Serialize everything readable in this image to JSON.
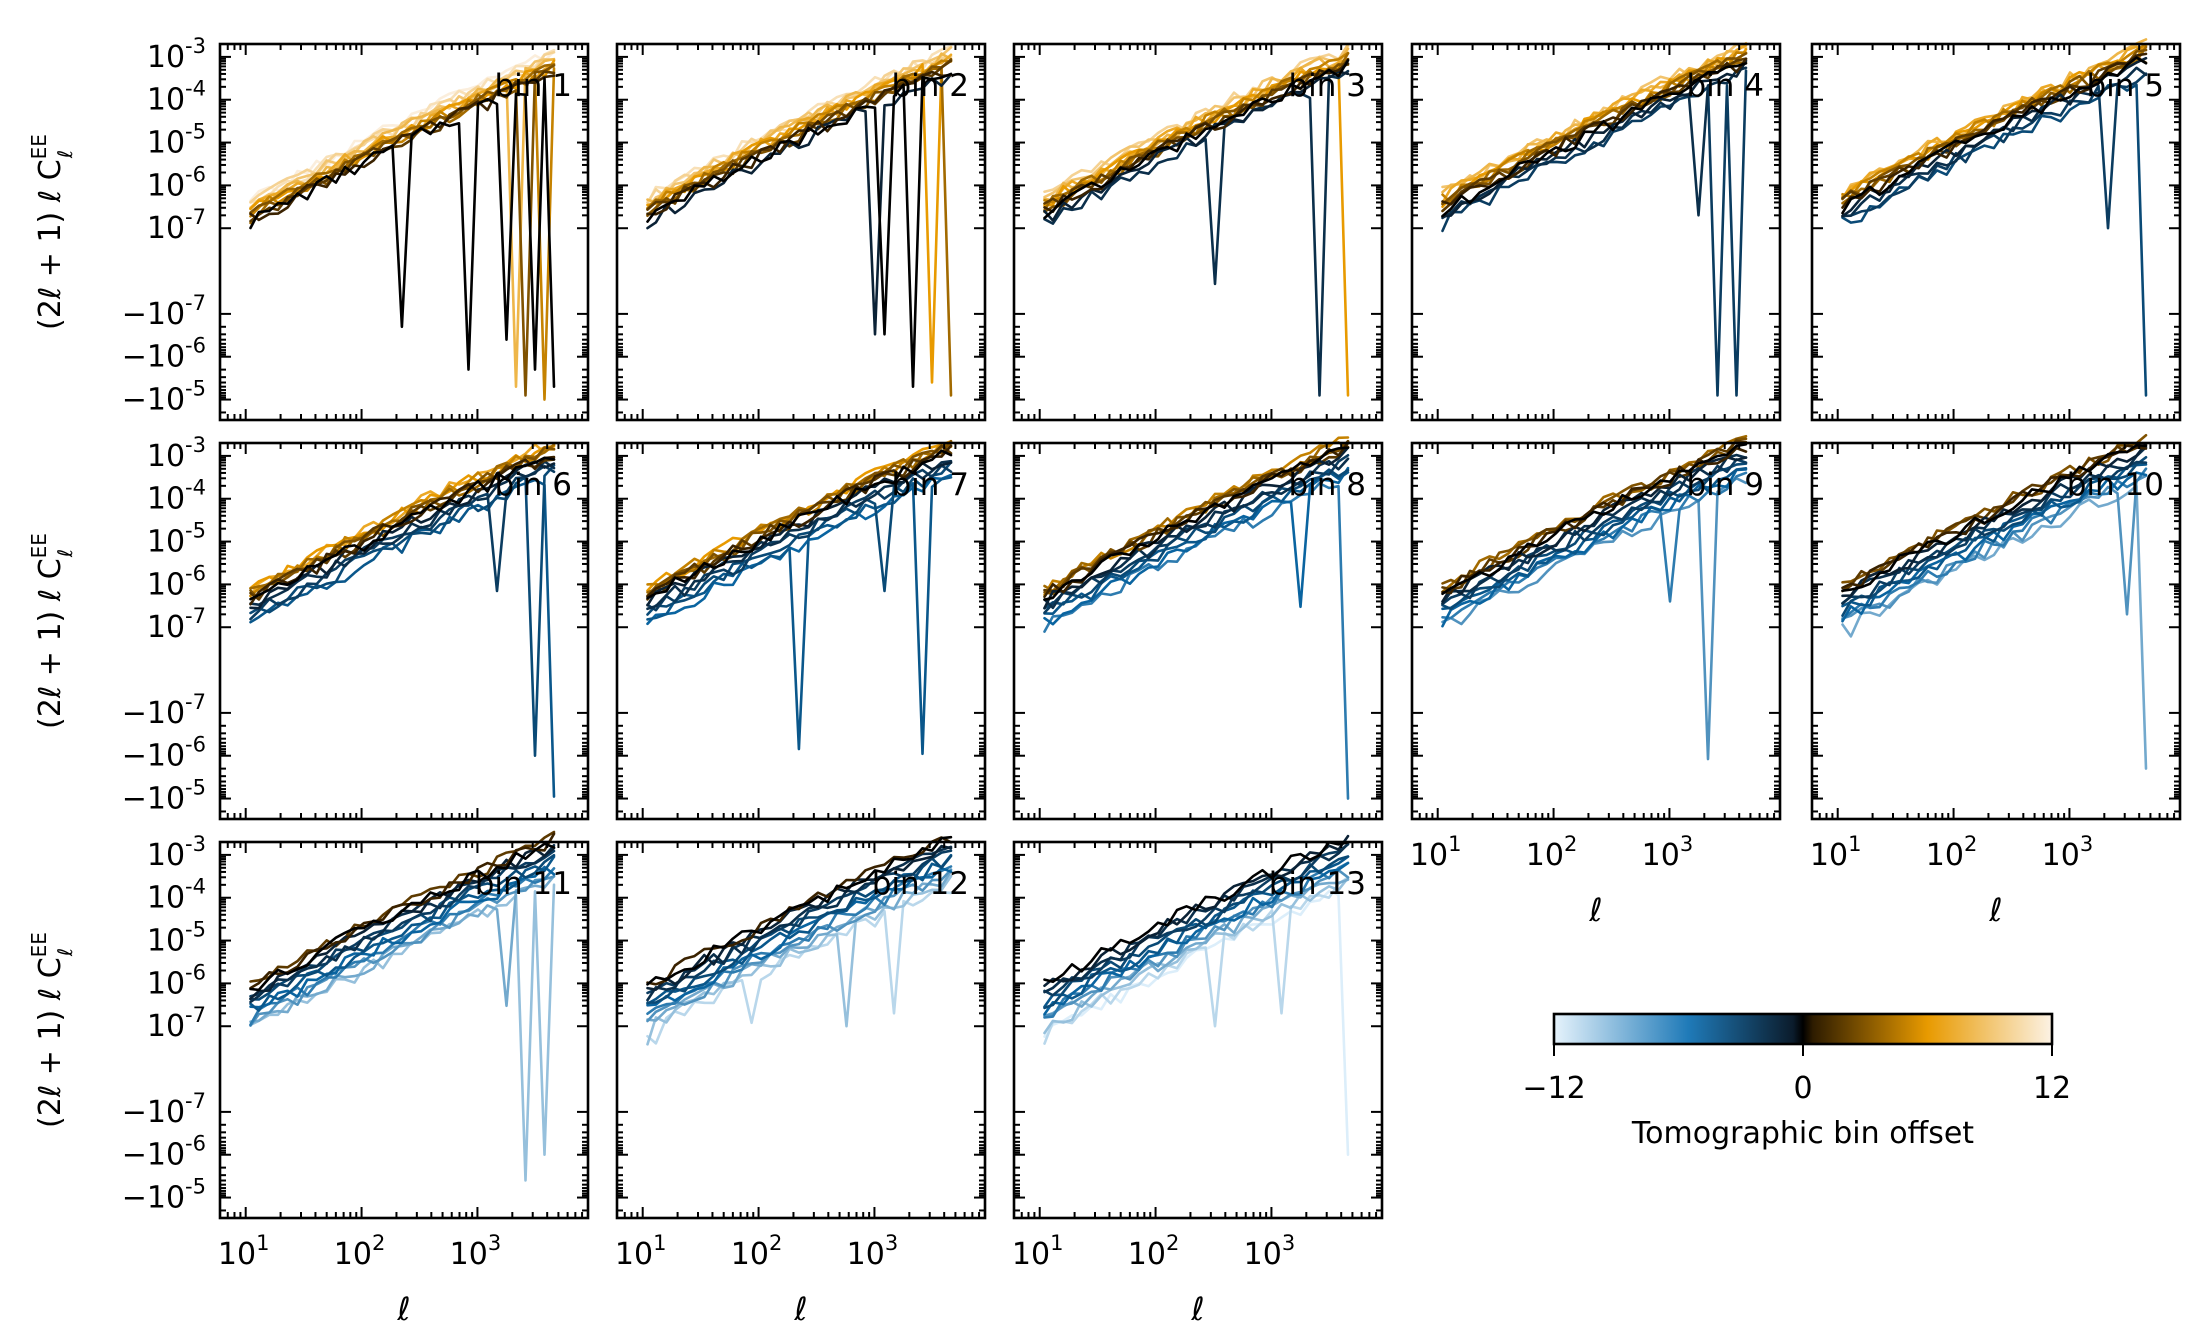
{
  "chart_data": {
    "type": "line",
    "title": "",
    "xlabel": "ℓ",
    "ylabel_parts": {
      "main": "(2ℓ + 1) ℓ C",
      "sup": "EE",
      "sub": "ℓ"
    },
    "xscale": "log",
    "yscale": "symlog",
    "xlim": [
      6,
      9000
    ],
    "ylim": [
      -3e-05,
      0.002
    ],
    "symlog_linthresh": 1e-07,
    "x_tick_labels": [
      {
        "base": "10",
        "exp": "1"
      },
      {
        "base": "10",
        "exp": "2"
      },
      {
        "base": "10",
        "exp": "3"
      }
    ],
    "y_tick_labels": [
      {
        "sign": "",
        "exp": "-3"
      },
      {
        "sign": "",
        "exp": "-4"
      },
      {
        "sign": "",
        "exp": "-5"
      },
      {
        "sign": "",
        "exp": "-6"
      },
      {
        "sign": "",
        "exp": "-7"
      },
      {
        "sign": "−",
        "exp": "-7"
      },
      {
        "sign": "−",
        "exp": "-6"
      },
      {
        "sign": "−",
        "exp": "-5"
      }
    ],
    "colorbar": {
      "label": "Tomographic bin offset",
      "min_label": "−12",
      "mid_label": "0",
      "max_label": "12",
      "range": [
        -12,
        12
      ]
    },
    "colors": {
      "offset_-12": "#dceefa",
      "offset_-6": "#0a64a0",
      "offset_-1": "#0b2236",
      "offset_0": "#000000",
      "offset_1": "#3a2200",
      "offset_6": "#e89a00",
      "offset_12": "#fbeedc"
    },
    "ell": [
      11,
      13,
      16,
      19,
      23,
      28,
      34,
      41,
      50,
      60,
      72,
      87,
      105,
      127,
      153,
      185,
      223,
      270,
      326,
      393,
      475,
      574,
      693,
      837,
      1011,
      1221,
      1475,
      1781,
      2151,
      2598,
      3138,
      3790,
      4577
    ],
    "panels": [
      {
        "label": "bin 1",
        "shared_curve_offsets": [
          0,
          1,
          2,
          3,
          4,
          5,
          6,
          7,
          8,
          9,
          10,
          11,
          12
        ],
        "ref_power": 1.5e-07,
        "dips": [
          {
            "offset": 0,
            "ell": 223,
            "value": -2e-07
          },
          {
            "offset": 0,
            "ell": 837,
            "value": -2e-06
          },
          {
            "offset": 0,
            "ell": 1781,
            "value": -4e-07
          },
          {
            "offset": 0,
            "ell": 3138,
            "value": -2e-06
          },
          {
            "offset": 0,
            "ell": 4577,
            "value": -5e-06
          },
          {
            "offset": 3,
            "ell": 2598,
            "value": -8e-06
          },
          {
            "offset": 5,
            "ell": 3790,
            "value": -1e-05
          },
          {
            "offset": 8,
            "ell": 2151,
            "value": -5e-06
          }
        ]
      },
      {
        "label": "bin 2",
        "shared_curve_offsets": [
          -1,
          0,
          1,
          2,
          3,
          4,
          5,
          6,
          7,
          8,
          9,
          10,
          11
        ],
        "ref_power": 2e-07,
        "dips": [
          {
            "offset": 0,
            "ell": 2151,
            "value": -5e-06
          },
          {
            "offset": 0,
            "ell": 1221,
            "value": -3e-07
          },
          {
            "offset": -1,
            "ell": 1011,
            "value": -3e-07
          },
          {
            "offset": 4,
            "ell": 4577,
            "value": -8e-06
          },
          {
            "offset": 6,
            "ell": 3138,
            "value": -4e-06
          }
        ]
      },
      {
        "label": "bin 3",
        "shared_curve_offsets": [
          -2,
          -1,
          0,
          1,
          2,
          3,
          4,
          5,
          6,
          7,
          8,
          9,
          10
        ],
        "ref_power": 2.4e-07,
        "dips": [
          {
            "offset": -2,
            "ell": 2598,
            "value": -8e-06
          },
          {
            "offset": -2,
            "ell": 326,
            "value": -3e-08
          },
          {
            "offset": 6,
            "ell": 4577,
            "value": -8e-06
          }
        ]
      },
      {
        "label": "bin 4",
        "shared_curve_offsets": [
          -3,
          -2,
          -1,
          0,
          1,
          2,
          3,
          4,
          5,
          6,
          7,
          8,
          9
        ],
        "ref_power": 3e-07,
        "dips": [
          {
            "offset": -3,
            "ell": 2598,
            "value": -8e-06
          },
          {
            "offset": -3,
            "ell": 3790,
            "value": -8e-06
          },
          {
            "offset": -2,
            "ell": 1781,
            "value": 2e-07
          }
        ]
      },
      {
        "label": "bin 5",
        "shared_curve_offsets": [
          -4,
          -3,
          -2,
          -1,
          0,
          1,
          2,
          3,
          4,
          5,
          6,
          7,
          8
        ],
        "ref_power": 3.5e-07,
        "dips": [
          {
            "offset": -4,
            "ell": 4577,
            "value": -8e-06
          },
          {
            "offset": -3,
            "ell": 2151,
            "value": 1e-07
          }
        ]
      },
      {
        "label": "bin 6",
        "shared_curve_offsets": [
          -5,
          -4,
          -3,
          -2,
          -1,
          0,
          1,
          2,
          3,
          4,
          5,
          6,
          7
        ],
        "ref_power": 4.2e-07,
        "dips": [
          {
            "offset": -5,
            "ell": 4577,
            "value": -9e-06
          },
          {
            "offset": -4,
            "ell": 3138,
            "value": -1e-06
          },
          {
            "offset": -3,
            "ell": 1475,
            "value": 7e-07
          }
        ]
      },
      {
        "label": "bin 7",
        "shared_curve_offsets": [
          -6,
          -5,
          -4,
          -3,
          -2,
          -1,
          0,
          1,
          2,
          3,
          4,
          5,
          6
        ],
        "ref_power": 5e-07,
        "dips": [
          {
            "offset": -5,
            "ell": 223,
            "value": -7e-07
          },
          {
            "offset": -5,
            "ell": 2598,
            "value": -9e-07
          },
          {
            "offset": -4,
            "ell": 1221,
            "value": 7e-07
          }
        ]
      },
      {
        "label": "bin 8",
        "shared_curve_offsets": [
          -7,
          -6,
          -5,
          -4,
          -3,
          -2,
          -1,
          0,
          1,
          2,
          3,
          4,
          5
        ],
        "ref_power": 5.8e-07,
        "dips": [
          {
            "offset": -7,
            "ell": 4577,
            "value": -1e-05
          },
          {
            "offset": -6,
            "ell": 1781,
            "value": 3e-07
          }
        ]
      },
      {
        "label": "bin 9",
        "shared_curve_offsets": [
          -8,
          -7,
          -6,
          -5,
          -4,
          -3,
          -2,
          -1,
          0,
          1,
          2,
          3,
          4
        ],
        "ref_power": 6.6e-07,
        "dips": [
          {
            "offset": -8,
            "ell": 2151,
            "value": -1.2e-06
          },
          {
            "offset": -7,
            "ell": 1011,
            "value": 4e-07
          }
        ]
      },
      {
        "label": "bin 10",
        "shared_curve_offsets": [
          -9,
          -8,
          -7,
          -6,
          -5,
          -4,
          -3,
          -2,
          -1,
          0,
          1,
          2,
          3
        ],
        "ref_power": 7.4e-07,
        "dips": [
          {
            "offset": -9,
            "ell": 4577,
            "value": -2e-06
          },
          {
            "offset": -8,
            "ell": 3138,
            "value": 2e-07
          }
        ]
      },
      {
        "label": "bin 11",
        "shared_curve_offsets": [
          -10,
          -9,
          -8,
          -7,
          -6,
          -5,
          -4,
          -3,
          -2,
          -1,
          0,
          1,
          2
        ],
        "ref_power": 8.2e-07,
        "dips": [
          {
            "offset": -10,
            "ell": 2598,
            "value": -4e-06
          },
          {
            "offset": -10,
            "ell": 3790,
            "value": -1e-06
          },
          {
            "offset": -9,
            "ell": 1781,
            "value": 3e-07
          }
        ]
      },
      {
        "label": "bin 12",
        "shared_curve_offsets": [
          -11,
          -10,
          -9,
          -8,
          -7,
          -6,
          -5,
          -4,
          -3,
          -2,
          -1,
          0,
          1
        ],
        "ref_power": 9e-07,
        "dips": [
          {
            "offset": -11,
            "ell": 87,
            "value": 1.2e-07
          },
          {
            "offset": -11,
            "ell": 1475,
            "value": 2e-07
          },
          {
            "offset": -10,
            "ell": 574,
            "value": 1e-07
          }
        ]
      },
      {
        "label": "bin 13",
        "shared_curve_offsets": [
          -12,
          -11,
          -10,
          -9,
          -8,
          -7,
          -6,
          -5,
          -4,
          -3,
          -2,
          -1,
          0
        ],
        "ref_power": 1e-06,
        "dips": [
          {
            "offset": -12,
            "ell": 4577,
            "value": -1e-06
          },
          {
            "offset": -11,
            "ell": 1221,
            "value": 2e-07
          },
          {
            "offset": -11,
            "ell": 326,
            "value": 1e-07
          }
        ]
      }
    ]
  }
}
